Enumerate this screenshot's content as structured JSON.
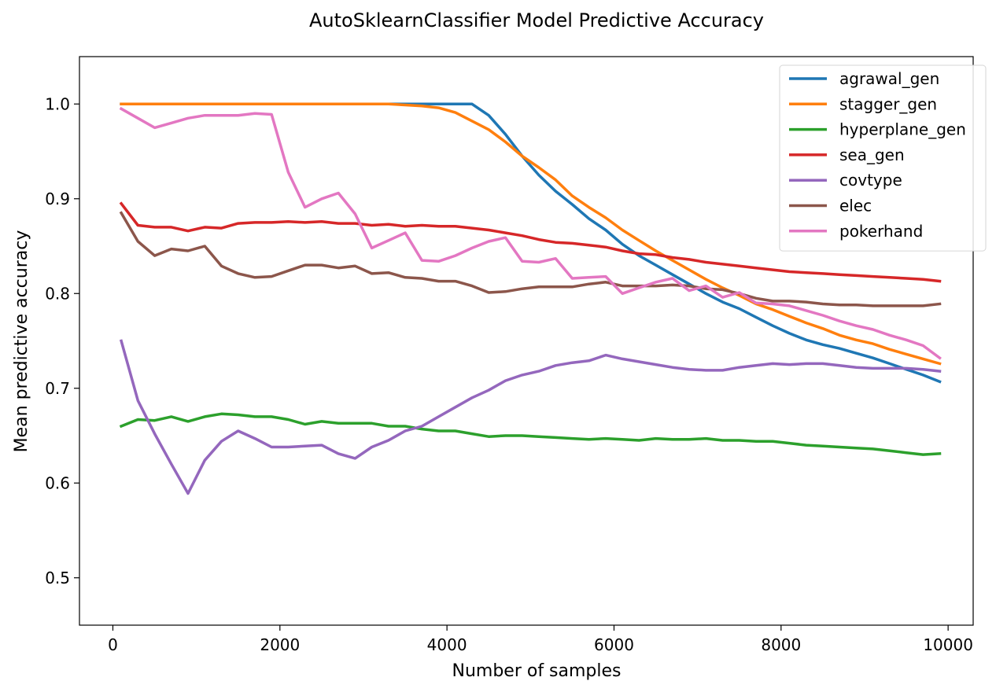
{
  "chart_data": {
    "type": "line",
    "title": "AutoSklearnClassifier Model Predictive Accuracy",
    "xlabel": "Number of samples",
    "ylabel": "Mean predictive accuracy",
    "xlim": [
      -400,
      10300
    ],
    "ylim": [
      0.45,
      1.05
    ],
    "xticks": [
      0,
      2000,
      4000,
      6000,
      8000,
      10000
    ],
    "yticks": [
      0.5,
      0.6,
      0.7,
      0.8,
      0.9,
      1.0
    ],
    "ytick_labels": [
      "0.5",
      "0.6",
      "0.7",
      "0.8",
      "0.9",
      "1.0"
    ],
    "grid": false,
    "legend_position": "top-right",
    "x": [
      100,
      300,
      500,
      700,
      900,
      1100,
      1300,
      1500,
      1700,
      1900,
      2100,
      2300,
      2500,
      2700,
      2900,
      3100,
      3300,
      3500,
      3700,
      3900,
      4100,
      4300,
      4500,
      4700,
      4900,
      5100,
      5300,
      5500,
      5700,
      5900,
      6100,
      6300,
      6500,
      6700,
      6900,
      7100,
      7300,
      7500,
      7700,
      7900,
      8100,
      8300,
      8500,
      8700,
      8900,
      9100,
      9300,
      9500,
      9700,
      9900
    ],
    "series": [
      {
        "name": "agrawal_gen",
        "color": "#1f77b4",
        "values": [
          1.0,
          1.0,
          1.0,
          1.0,
          1.0,
          1.0,
          1.0,
          1.0,
          1.0,
          1.0,
          1.0,
          1.0,
          1.0,
          1.0,
          1.0,
          1.0,
          1.0,
          1.0,
          1.0,
          1.0,
          1.0,
          1.0,
          0.988,
          0.968,
          0.945,
          0.925,
          0.908,
          0.894,
          0.879,
          0.867,
          0.852,
          0.84,
          0.83,
          0.82,
          0.81,
          0.8,
          0.791,
          0.784,
          0.775,
          0.766,
          0.758,
          0.751,
          0.746,
          0.742,
          0.737,
          0.732,
          0.726,
          0.72,
          0.714,
          0.707
        ]
      },
      {
        "name": "stagger_gen",
        "color": "#ff7f0e",
        "values": [
          1.0,
          1.0,
          1.0,
          1.0,
          1.0,
          1.0,
          1.0,
          1.0,
          1.0,
          1.0,
          1.0,
          1.0,
          1.0,
          1.0,
          1.0,
          1.0,
          1.0,
          0.999,
          0.998,
          0.996,
          0.991,
          0.982,
          0.973,
          0.96,
          0.945,
          0.933,
          0.92,
          0.903,
          0.891,
          0.88,
          0.867,
          0.856,
          0.845,
          0.835,
          0.825,
          0.815,
          0.806,
          0.798,
          0.789,
          0.783,
          0.776,
          0.769,
          0.763,
          0.756,
          0.751,
          0.747,
          0.741,
          0.736,
          0.731,
          0.726
        ]
      },
      {
        "name": "hyperplane_gen",
        "color": "#2ca02c",
        "values": [
          0.66,
          0.667,
          0.666,
          0.67,
          0.665,
          0.67,
          0.673,
          0.672,
          0.67,
          0.67,
          0.667,
          0.662,
          0.665,
          0.663,
          0.663,
          0.663,
          0.66,
          0.66,
          0.657,
          0.655,
          0.655,
          0.652,
          0.649,
          0.65,
          0.65,
          0.649,
          0.648,
          0.647,
          0.646,
          0.647,
          0.646,
          0.645,
          0.647,
          0.646,
          0.646,
          0.647,
          0.645,
          0.645,
          0.644,
          0.644,
          0.642,
          0.64,
          0.639,
          0.638,
          0.637,
          0.636,
          0.634,
          0.632,
          0.63,
          0.631
        ]
      },
      {
        "name": "sea_gen",
        "color": "#d62728",
        "values": [
          0.895,
          0.872,
          0.87,
          0.87,
          0.866,
          0.87,
          0.869,
          0.874,
          0.875,
          0.875,
          0.876,
          0.875,
          0.876,
          0.874,
          0.874,
          0.872,
          0.873,
          0.871,
          0.872,
          0.871,
          0.871,
          0.869,
          0.867,
          0.864,
          0.861,
          0.857,
          0.854,
          0.853,
          0.851,
          0.849,
          0.845,
          0.842,
          0.841,
          0.838,
          0.836,
          0.833,
          0.831,
          0.829,
          0.827,
          0.825,
          0.823,
          0.822,
          0.821,
          0.82,
          0.819,
          0.818,
          0.817,
          0.816,
          0.815,
          0.813
        ]
      },
      {
        "name": "covtype",
        "color": "#9467bd",
        "values": [
          0.75,
          0.687,
          0.652,
          0.62,
          0.589,
          0.624,
          0.644,
          0.655,
          0.647,
          0.638,
          0.638,
          0.639,
          0.64,
          0.631,
          0.626,
          0.638,
          0.645,
          0.655,
          0.66,
          0.67,
          0.68,
          0.69,
          0.698,
          0.708,
          0.714,
          0.718,
          0.724,
          0.727,
          0.729,
          0.735,
          0.731,
          0.728,
          0.725,
          0.722,
          0.72,
          0.719,
          0.719,
          0.722,
          0.724,
          0.726,
          0.725,
          0.726,
          0.726,
          0.724,
          0.722,
          0.721,
          0.721,
          0.721,
          0.72,
          0.718
        ]
      },
      {
        "name": "elec",
        "color": "#8c564b",
        "values": [
          0.885,
          0.855,
          0.84,
          0.847,
          0.845,
          0.85,
          0.829,
          0.821,
          0.817,
          0.818,
          0.824,
          0.83,
          0.83,
          0.827,
          0.829,
          0.821,
          0.822,
          0.817,
          0.816,
          0.813,
          0.813,
          0.808,
          0.801,
          0.802,
          0.805,
          0.807,
          0.807,
          0.807,
          0.81,
          0.812,
          0.808,
          0.808,
          0.808,
          0.809,
          0.808,
          0.805,
          0.804,
          0.8,
          0.795,
          0.792,
          0.792,
          0.791,
          0.789,
          0.788,
          0.788,
          0.787,
          0.787,
          0.787,
          0.787,
          0.789
        ]
      },
      {
        "name": "pokerhand",
        "color": "#e377c2",
        "values": [
          0.995,
          0.985,
          0.975,
          0.98,
          0.985,
          0.988,
          0.988,
          0.988,
          0.99,
          0.989,
          0.928,
          0.891,
          0.9,
          0.906,
          0.884,
          0.848,
          0.856,
          0.864,
          0.835,
          0.834,
          0.84,
          0.848,
          0.855,
          0.859,
          0.834,
          0.833,
          0.837,
          0.816,
          0.817,
          0.818,
          0.8,
          0.806,
          0.812,
          0.816,
          0.803,
          0.808,
          0.796,
          0.801,
          0.79,
          0.789,
          0.787,
          0.782,
          0.777,
          0.771,
          0.766,
          0.762,
          0.756,
          0.751,
          0.745,
          0.732
        ]
      }
    ]
  }
}
